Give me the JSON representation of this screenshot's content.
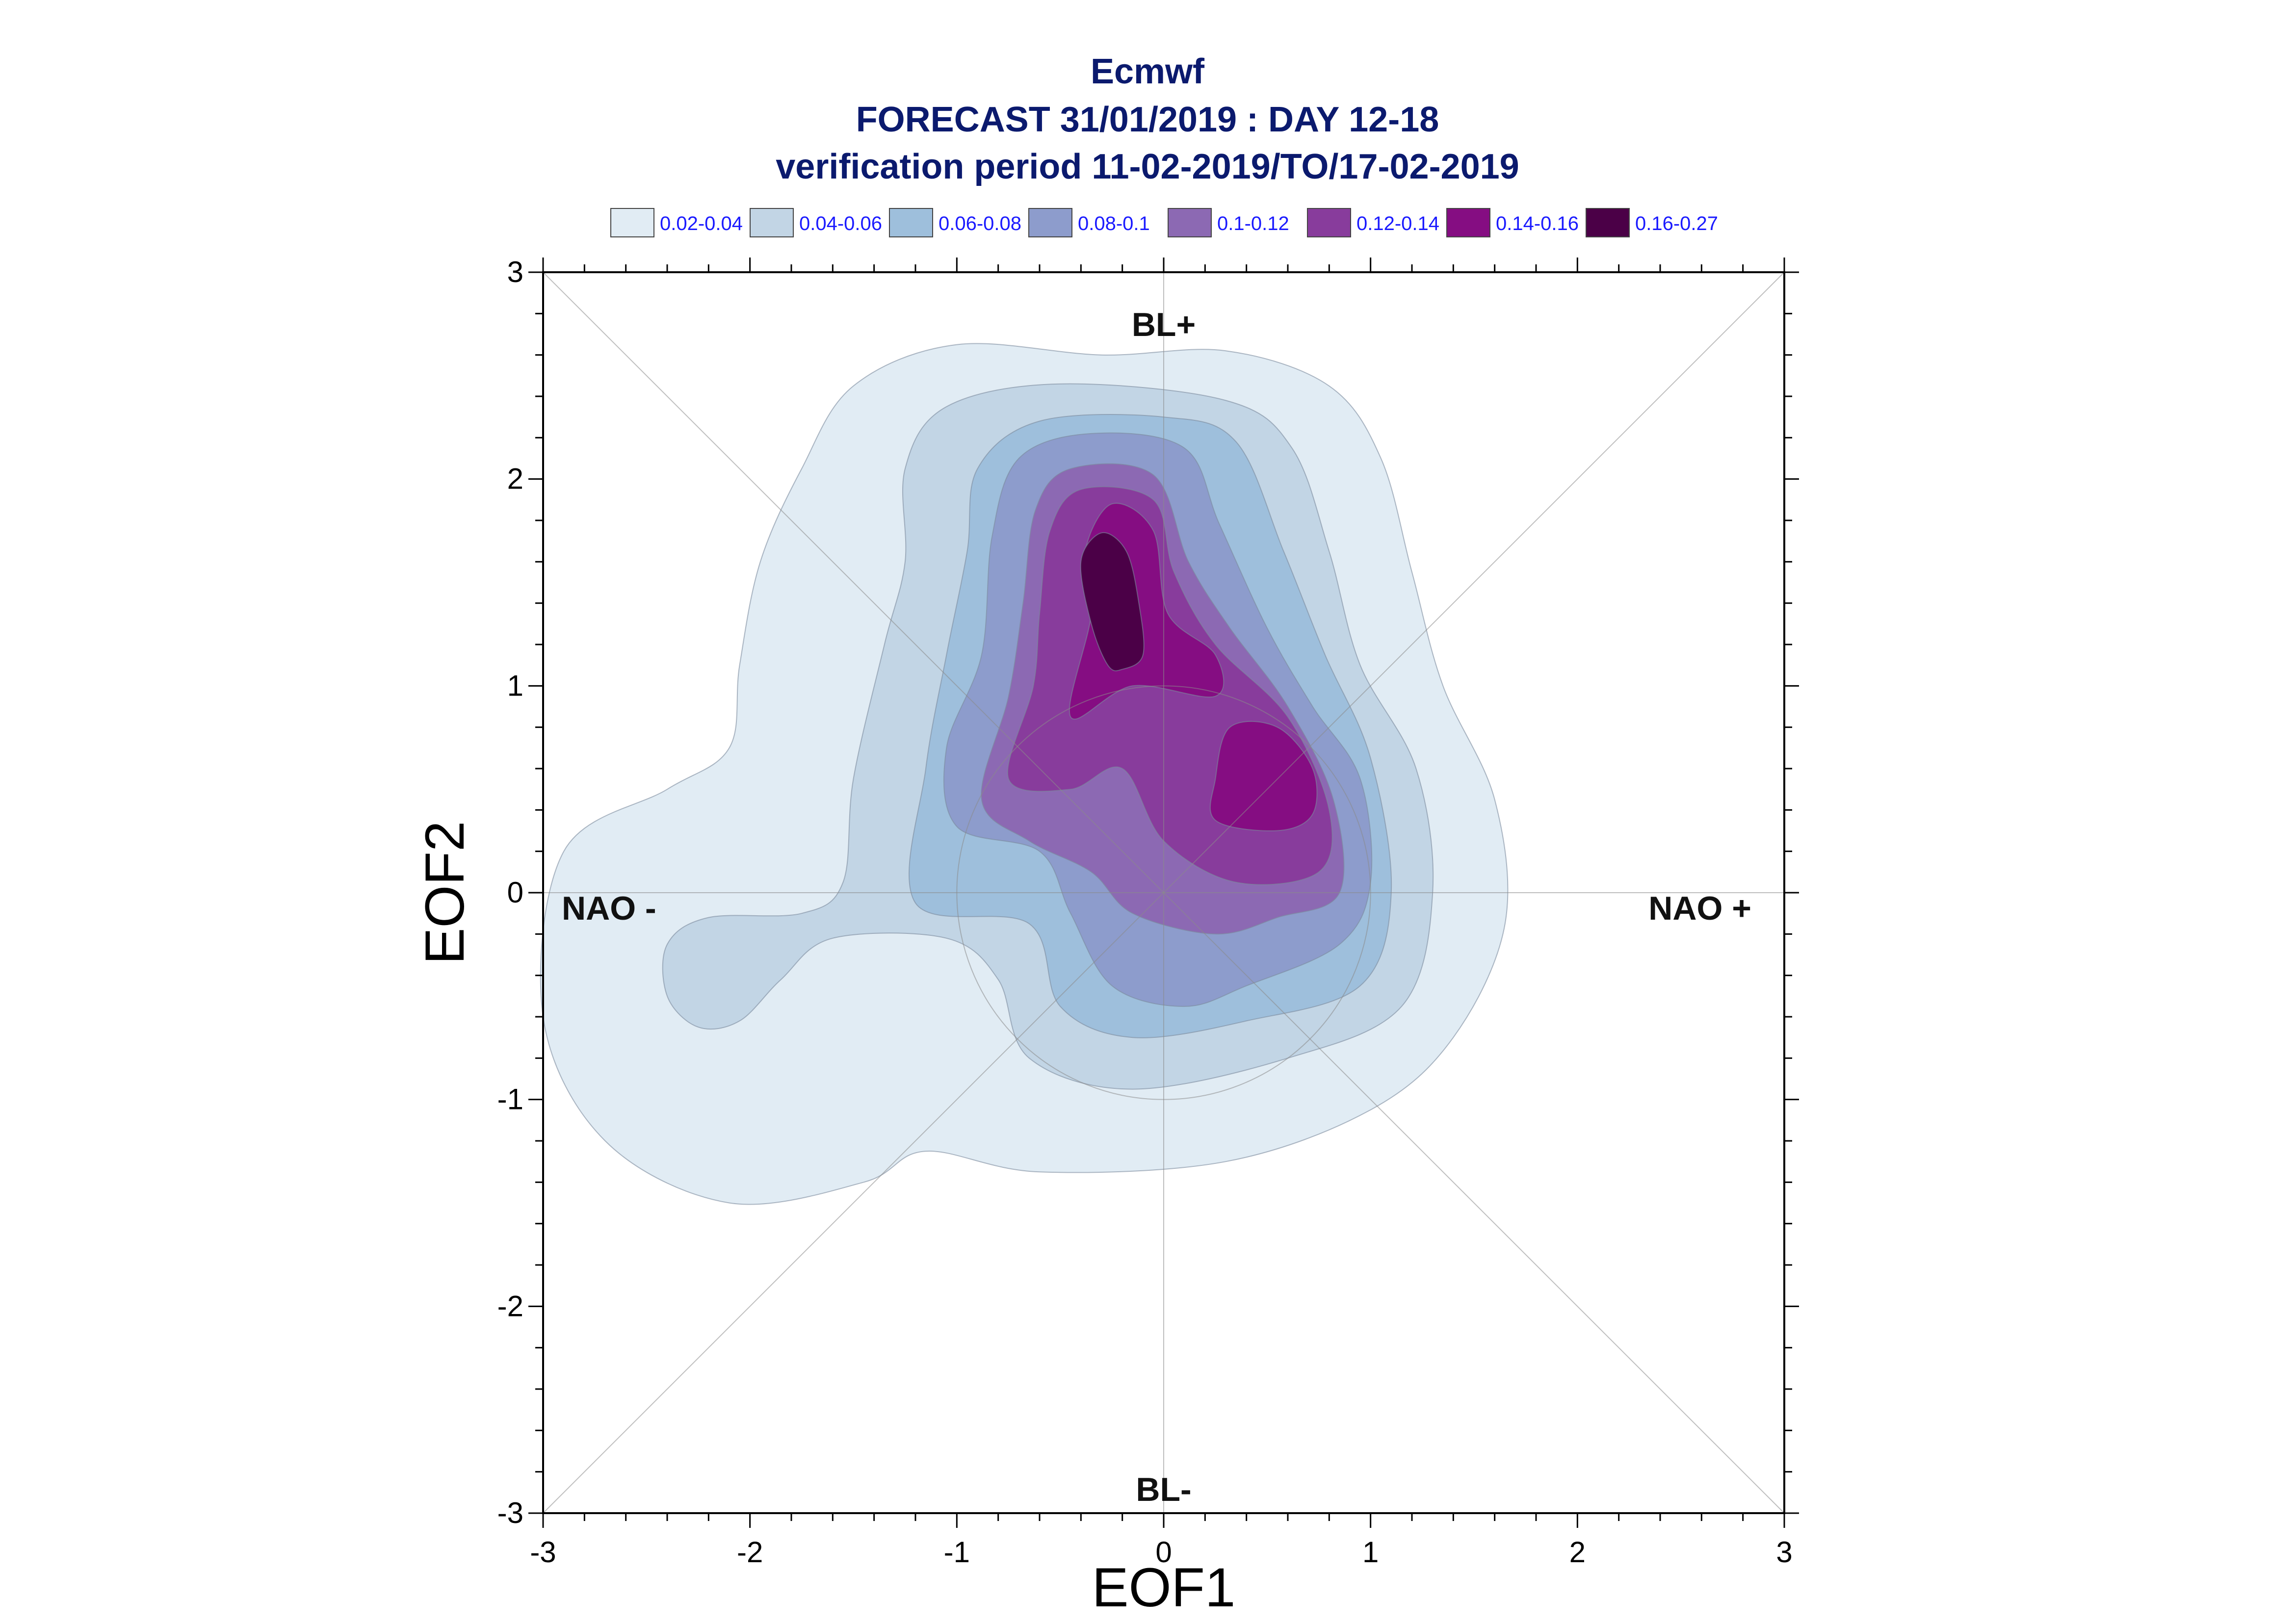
{
  "title": {
    "line1": "Ecmwf",
    "line2": "FORECAST 31/01/2019 : DAY 12-18",
    "line3": "verification period 11-02-2019/TO/17-02-2019"
  },
  "legend": [
    {
      "label": "0.02-0.04",
      "color": "#e1ecf4"
    },
    {
      "label": "0.04-0.06",
      "color": "#c2d5e5"
    },
    {
      "label": "0.06-0.08",
      "color": "#9ebfdc"
    },
    {
      "label": "0.08-0.1",
      "color": "#8d9ccc"
    },
    {
      "label": "0.1-0.12",
      "color": "#8c69b3"
    },
    {
      "label": "0.12-0.14",
      "color": "#883c9c"
    },
    {
      "label": "0.14-0.16",
      "color": "#850d82"
    },
    {
      "label": "0.16-0.27",
      "color": "#4b0047"
    }
  ],
  "chart_data": {
    "type": "contour",
    "title": "Ecmwf FORECAST 31/01/2019 : DAY 12-18 verification period 11-02-2019/TO/17-02-2019",
    "xlabel": "EOF1",
    "ylabel": "EOF2",
    "xlim": [
      -3,
      3
    ],
    "ylim": [
      -3,
      3
    ],
    "xticks": [
      "-3",
      "-2",
      "-1",
      "0",
      "1",
      "2",
      "3"
    ],
    "yticks": [
      "3",
      "2",
      "1",
      "0",
      "-1",
      "-2",
      "-3"
    ],
    "region_labels": {
      "top": "BL+",
      "bottom": "BL-",
      "left": "NAO -",
      "right": "NAO +"
    },
    "reference_circle": {
      "center": [
        0,
        0
      ],
      "radius": 1
    },
    "levels": [
      {
        "range": "0.02-0.04",
        "polygons": [
          [
            [
              -2.1,
              -1.5
            ],
            [
              -2.7,
              -1.2
            ],
            [
              -3.0,
              -0.6
            ],
            [
              -2.9,
              0.2
            ],
            [
              -2.4,
              0.5
            ],
            [
              -2.1,
              0.7
            ],
            [
              -2.05,
              1.1
            ],
            [
              -1.95,
              1.6
            ],
            [
              -1.75,
              2.05
            ],
            [
              -1.5,
              2.45
            ],
            [
              -1.0,
              2.65
            ],
            [
              -0.3,
              2.6
            ],
            [
              0.3,
              2.62
            ],
            [
              0.8,
              2.45
            ],
            [
              1.05,
              2.1
            ],
            [
              1.2,
              1.55
            ],
            [
              1.35,
              1.0
            ],
            [
              1.6,
              0.45
            ],
            [
              1.65,
              -0.15
            ],
            [
              1.4,
              -0.7
            ],
            [
              1.0,
              -1.05
            ],
            [
              0.3,
              -1.3
            ],
            [
              -0.6,
              -1.35
            ],
            [
              -1.15,
              -1.25
            ],
            [
              -1.45,
              -1.4
            ]
          ]
        ]
      },
      {
        "range": "0.04-0.06",
        "polygons": [
          [
            [
              -2.25,
              -0.65
            ],
            [
              -2.4,
              -0.5
            ],
            [
              -2.4,
              -0.25
            ],
            [
              -2.2,
              -0.12
            ],
            [
              -1.75,
              -0.1
            ],
            [
              -1.55,
              0.05
            ],
            [
              -1.5,
              0.55
            ],
            [
              -1.35,
              1.2
            ],
            [
              -1.25,
              1.6
            ],
            [
              -1.25,
              2.05
            ],
            [
              -1.05,
              2.35
            ],
            [
              -0.5,
              2.46
            ],
            [
              0.3,
              2.38
            ],
            [
              0.62,
              2.15
            ],
            [
              0.8,
              1.65
            ],
            [
              0.95,
              1.1
            ],
            [
              1.22,
              0.6
            ],
            [
              1.3,
              0.0
            ],
            [
              1.15,
              -0.55
            ],
            [
              0.6,
              -0.8
            ],
            [
              -0.15,
              -0.95
            ],
            [
              -0.65,
              -0.8
            ],
            [
              -0.8,
              -0.42
            ],
            [
              -1.05,
              -0.22
            ],
            [
              -1.6,
              -0.22
            ],
            [
              -1.85,
              -0.42
            ],
            [
              -2.05,
              -0.62
            ]
          ]
        ]
      },
      {
        "range": "0.06-0.08",
        "polygons": [
          [
            [
              -1.2,
              -0.05
            ],
            [
              -1.15,
              0.6
            ],
            [
              -1.05,
              1.15
            ],
            [
              -0.95,
              1.65
            ],
            [
              -0.9,
              2.05
            ],
            [
              -0.6,
              2.28
            ],
            [
              0.0,
              2.3
            ],
            [
              0.35,
              2.18
            ],
            [
              0.58,
              1.65
            ],
            [
              0.78,
              1.15
            ],
            [
              1.0,
              0.65
            ],
            [
              1.1,
              0.0
            ],
            [
              0.95,
              -0.45
            ],
            [
              0.4,
              -0.62
            ],
            [
              -0.15,
              -0.7
            ],
            [
              -0.5,
              -0.55
            ],
            [
              -0.65,
              -0.15
            ]
          ]
        ]
      },
      {
        "range": "0.08-0.1",
        "polygons": [
          [
            [
              -1.0,
              0.32
            ],
            [
              -1.05,
              0.7
            ],
            [
              -0.88,
              1.15
            ],
            [
              -0.83,
              1.72
            ],
            [
              -0.7,
              2.1
            ],
            [
              -0.35,
              2.22
            ],
            [
              0.1,
              2.15
            ],
            [
              0.27,
              1.78
            ],
            [
              0.5,
              1.28
            ],
            [
              0.72,
              0.9
            ],
            [
              0.95,
              0.55
            ],
            [
              1.0,
              0.05
            ],
            [
              0.85,
              -0.25
            ],
            [
              0.4,
              -0.45
            ],
            [
              0.1,
              -0.55
            ],
            [
              -0.25,
              -0.45
            ],
            [
              -0.45,
              -0.1
            ],
            [
              -0.6,
              0.2
            ]
          ]
        ]
      },
      {
        "range": "0.1-0.12",
        "polygons": [
          [
            [
              -0.88,
              0.45
            ],
            [
              -0.75,
              0.95
            ],
            [
              -0.68,
              1.4
            ],
            [
              -0.62,
              1.85
            ],
            [
              -0.45,
              2.05
            ],
            [
              -0.05,
              2.02
            ],
            [
              0.12,
              1.6
            ],
            [
              0.32,
              1.28
            ],
            [
              0.6,
              0.9
            ],
            [
              0.82,
              0.45
            ],
            [
              0.85,
              0.0
            ],
            [
              0.55,
              -0.12
            ],
            [
              0.25,
              -0.2
            ],
            [
              -0.15,
              -0.1
            ],
            [
              -0.35,
              0.1
            ],
            [
              -0.65,
              0.25
            ]
          ]
        ]
      },
      {
        "range": "0.12-0.14",
        "polygons": [
          [
            [
              -0.75,
              0.55
            ],
            [
              -0.63,
              1.0
            ],
            [
              -0.6,
              1.35
            ],
            [
              -0.55,
              1.75
            ],
            [
              -0.4,
              1.95
            ],
            [
              -0.05,
              1.9
            ],
            [
              0.05,
              1.55
            ],
            [
              0.25,
              1.2
            ],
            [
              0.6,
              0.85
            ],
            [
              0.8,
              0.4
            ],
            [
              0.75,
              0.1
            ],
            [
              0.35,
              0.05
            ],
            [
              0.0,
              0.25
            ],
            [
              -0.2,
              0.6
            ],
            [
              -0.45,
              0.5
            ]
          ]
        ]
      },
      {
        "range": "0.14-0.16",
        "polygons": [
          [
            [
              -0.45,
              0.85
            ],
            [
              -0.35,
              1.35
            ],
            [
              -0.38,
              1.65
            ],
            [
              -0.25,
              1.88
            ],
            [
              -0.05,
              1.75
            ],
            [
              0.02,
              1.35
            ],
            [
              0.25,
              1.15
            ],
            [
              0.25,
              0.95
            ],
            [
              -0.15,
              1.0
            ]
          ],
          [
            [
              0.25,
              0.55
            ],
            [
              0.32,
              0.8
            ],
            [
              0.55,
              0.8
            ],
            [
              0.72,
              0.6
            ],
            [
              0.72,
              0.38
            ],
            [
              0.55,
              0.3
            ],
            [
              0.25,
              0.35
            ]
          ]
        ]
      },
      {
        "range": "0.16-0.27",
        "polygons": [
          [
            [
              -0.27,
              1.1
            ],
            [
              -0.35,
              1.3
            ],
            [
              -0.4,
              1.6
            ],
            [
              -0.3,
              1.74
            ],
            [
              -0.18,
              1.65
            ],
            [
              -0.12,
              1.4
            ],
            [
              -0.1,
              1.15
            ],
            [
              -0.2,
              1.08
            ]
          ]
        ]
      }
    ]
  }
}
